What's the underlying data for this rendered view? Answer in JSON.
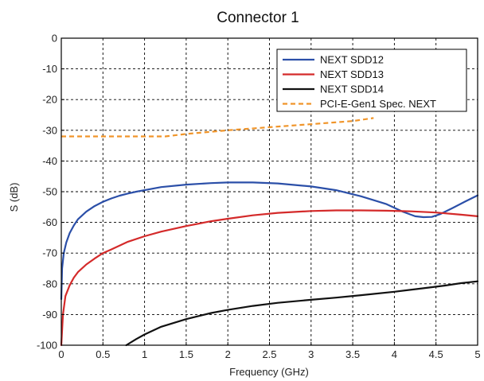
{
  "chart_data": {
    "type": "line",
    "title": "Connector 1",
    "xlabel": "Frequency (GHz)",
    "ylabel": "S (dB)",
    "xlim": [
      0,
      5
    ],
    "ylim": [
      -100,
      0
    ],
    "x_ticks": [
      0,
      0.5,
      1,
      1.5,
      2,
      2.5,
      3,
      3.5,
      4,
      4.5,
      5
    ],
    "x_tick_labels": [
      "0",
      "0.5",
      "1",
      "1.5",
      "2",
      "2.5",
      "3",
      "3.5",
      "4",
      "4.5",
      "5"
    ],
    "y_ticks": [
      0,
      -10,
      -20,
      -30,
      -40,
      -50,
      -60,
      -70,
      -80,
      -90,
      -100
    ],
    "y_tick_labels": [
      "0",
      "-10",
      "-20",
      "-30",
      "-40",
      "-50",
      "-60",
      "-70",
      "-80",
      "-90",
      "-100"
    ],
    "grid": true,
    "legend_position": "top-right",
    "series": [
      {
        "name": "NEXT SDD12",
        "color": "#2b4fa8",
        "style": "solid",
        "x": [
          0.0,
          0.01,
          0.03,
          0.06,
          0.1,
          0.15,
          0.2,
          0.3,
          0.4,
          0.5,
          0.6,
          0.7,
          0.8,
          0.9,
          1.0,
          1.2,
          1.5,
          1.8,
          2.0,
          2.3,
          2.6,
          3.0,
          3.3,
          3.6,
          3.9,
          4.1,
          4.25,
          4.35,
          4.45,
          4.55,
          4.7,
          4.85,
          5.0
        ],
        "y": [
          -85,
          -75,
          -70,
          -66.5,
          -63.5,
          -61,
          -59,
          -56.5,
          -54.7,
          -53.3,
          -52.2,
          -51.3,
          -50.6,
          -50,
          -49.5,
          -48.5,
          -47.7,
          -47.2,
          -47,
          -47,
          -47.3,
          -48.3,
          -49.5,
          -51.5,
          -54,
          -56.5,
          -58,
          -58.3,
          -58.2,
          -57.3,
          -55.3,
          -53.2,
          -51.2
        ]
      },
      {
        "name": "NEXT SDD13",
        "color": "#d42a2a",
        "style": "solid",
        "x": [
          0.0,
          0.02,
          0.05,
          0.1,
          0.15,
          0.2,
          0.3,
          0.4,
          0.5,
          0.6,
          0.8,
          1.0,
          1.2,
          1.5,
          1.8,
          2.0,
          2.3,
          2.6,
          3.0,
          3.3,
          3.6,
          3.9,
          4.2,
          4.5,
          4.8,
          5.0
        ],
        "y": [
          -100,
          -90,
          -84,
          -80.5,
          -78,
          -76.2,
          -73.7,
          -71.8,
          -70,
          -68.8,
          -66.3,
          -64.5,
          -63,
          -61.2,
          -59.6,
          -58.8,
          -57.7,
          -56.9,
          -56.3,
          -56.1,
          -56.1,
          -56.2,
          -56.4,
          -56.8,
          -57.5,
          -58
        ]
      },
      {
        "name": "NEXT SDD14",
        "color": "#111111",
        "style": "solid",
        "x": [
          0.78,
          0.9,
          1.0,
          1.2,
          1.5,
          1.8,
          2.0,
          2.3,
          2.6,
          3.0,
          3.3,
          3.6,
          4.0,
          4.3,
          4.6,
          4.8,
          5.0
        ],
        "y": [
          -100,
          -98,
          -96.5,
          -94,
          -91.5,
          -89.5,
          -88.5,
          -87.2,
          -86.2,
          -85.2,
          -84.5,
          -83.7,
          -82.6,
          -81.6,
          -80.6,
          -79.8,
          -79.2
        ]
      },
      {
        "name": "PCI-E-Gen1 Spec. NEXT",
        "color": "#f0952a",
        "style": "dashed",
        "x": [
          0.0,
          0.5,
          1.0,
          1.25,
          1.5,
          2.0,
          2.5,
          3.0,
          3.5,
          3.75
        ],
        "y": [
          -32,
          -32,
          -32,
          -32,
          -31.2,
          -30,
          -29,
          -28,
          -27,
          -26
        ]
      }
    ]
  }
}
